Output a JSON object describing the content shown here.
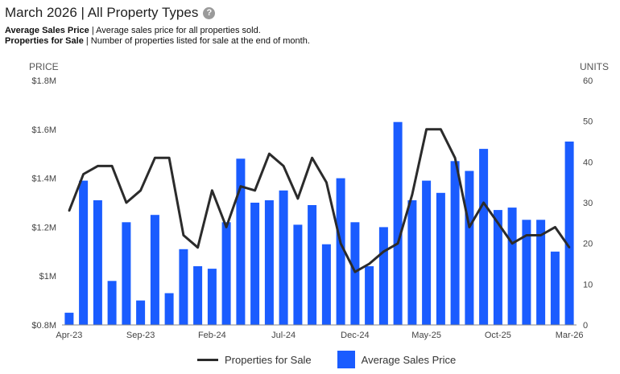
{
  "chart_data": {
    "type": "bar",
    "title": "March 2026 | All Property Types",
    "descriptions": [
      {
        "term": "Average Sales Price",
        "text": " | Average sales price for all properties sold."
      },
      {
        "term": "Properties for Sale",
        "text": " | Number of properties listed for sale at the end of month."
      }
    ],
    "left_axis": {
      "label": "PRICE",
      "ticks": [
        "$0.8M",
        "$1M",
        "$1.2M",
        "$1.4M",
        "$1.6M",
        "$1.8M"
      ],
      "ylim": [
        0.8,
        1.8
      ],
      "unit": "millions USD"
    },
    "right_axis": {
      "label": "UNITS",
      "ticks": [
        "0",
        "10",
        "20",
        "30",
        "40",
        "50",
        "60"
      ],
      "ylim": [
        0,
        60
      ]
    },
    "x_tick_labels": [
      {
        "index": 0,
        "label": "Apr-23"
      },
      {
        "index": 5,
        "label": "Sep-23"
      },
      {
        "index": 10,
        "label": "Feb-24"
      },
      {
        "index": 15,
        "label": "Jul-24"
      },
      {
        "index": 20,
        "label": "Dec-24"
      },
      {
        "index": 25,
        "label": "May-25"
      },
      {
        "index": 30,
        "label": "Oct-25"
      },
      {
        "index": 35,
        "label": "Mar-26"
      }
    ],
    "categories": [
      "Apr-23",
      "May-23",
      "Jun-23",
      "Jul-23",
      "Aug-23",
      "Sep-23",
      "Oct-23",
      "Nov-23",
      "Dec-23",
      "Jan-24",
      "Feb-24",
      "Mar-24",
      "Apr-24",
      "May-24",
      "Jun-24",
      "Jul-24",
      "Aug-24",
      "Sep-24",
      "Oct-24",
      "Nov-24",
      "Dec-24",
      "Jan-25",
      "Feb-25",
      "Mar-25",
      "Apr-25",
      "May-25",
      "Jun-25",
      "Jul-25",
      "Aug-25",
      "Sep-25",
      "Oct-25",
      "Nov-25",
      "Dec-25",
      "Jan-26",
      "Feb-26",
      "Mar-26"
    ],
    "series": [
      {
        "name": "Average Sales Price",
        "type": "bar",
        "axis": "left",
        "color": "#1a5cff",
        "values": [
          0.85,
          1.39,
          1.31,
          0.98,
          1.22,
          0.9,
          1.25,
          0.93,
          1.11,
          1.04,
          1.03,
          1.22,
          1.48,
          1.3,
          1.31,
          1.35,
          1.21,
          1.29,
          1.13,
          1.4,
          1.22,
          1.04,
          1.2,
          1.63,
          1.31,
          1.39,
          1.34,
          1.47,
          1.43,
          1.52,
          1.27,
          1.28,
          1.23,
          1.23,
          1.1,
          1.55
        ]
      },
      {
        "name": "Properties for Sale",
        "type": "line",
        "axis": "right",
        "color": "#2b2b2b",
        "values": [
          28,
          37,
          39,
          39,
          30,
          33,
          41,
          41,
          22,
          19,
          33,
          24,
          34,
          33,
          42,
          39,
          31,
          41,
          35,
          20,
          13,
          15,
          18,
          20,
          32,
          48,
          48,
          41,
          24,
          30,
          25,
          20,
          22,
          22,
          24,
          19
        ]
      }
    ],
    "legend": {
      "position": "bottom",
      "items": [
        "Properties for Sale",
        "Average Sales Price"
      ]
    }
  }
}
